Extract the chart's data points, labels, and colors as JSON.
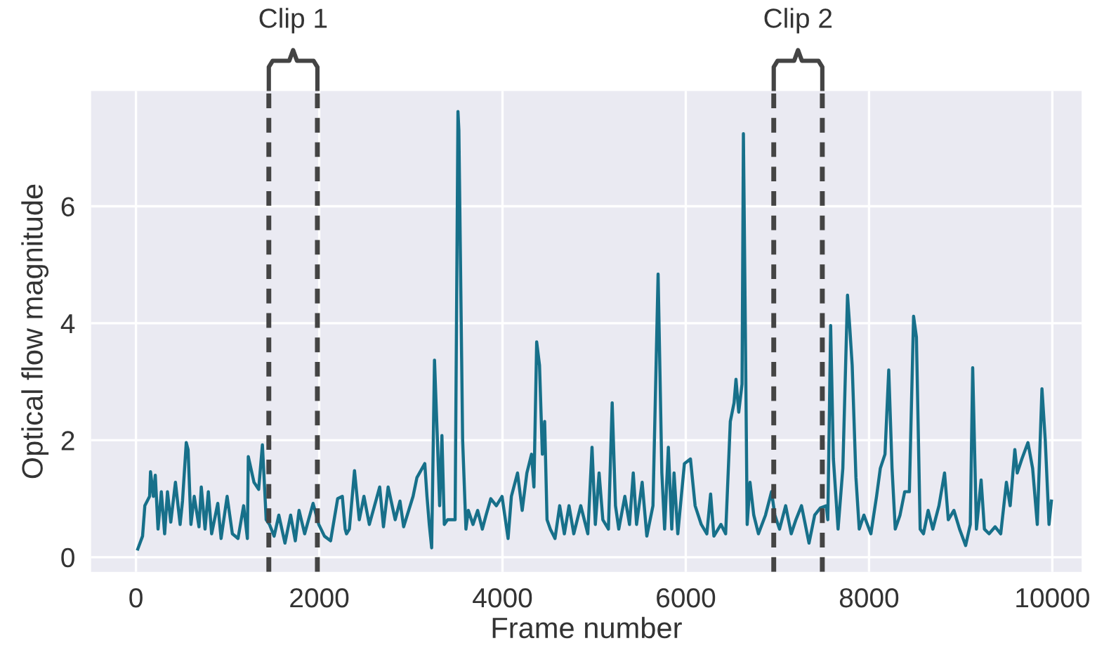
{
  "chart_data": {
    "type": "line",
    "xlabel": "Frame number",
    "ylabel": "Optical flow magnitude",
    "series": [
      {
        "color": "#17708a",
        "x": [
          20,
          72,
          97,
          149,
          159,
          190,
          211,
          241,
          277,
          313,
          344,
          380,
          431,
          482,
          508,
          549,
          569,
          600,
          636,
          688,
          713,
          754,
          790,
          826,
          893,
          929,
          995,
          1052,
          1114,
          1175,
          1216,
          1226,
          1288,
          1339,
          1380,
          1406,
          1421,
          1457,
          1508,
          1559,
          1626,
          1688,
          1739,
          1780,
          1841,
          1933,
          1995,
          2057,
          2124,
          2201,
          2252,
          2283,
          2298,
          2329,
          2385,
          2437,
          2488,
          2547,
          2660,
          2701,
          2701,
          2752,
          2829,
          2881,
          2921,
          3024,
          3066,
          3152,
          3176,
          3201,
          3227,
          3258,
          3288,
          3314,
          3339,
          3365,
          3401,
          3422,
          3483,
          3514,
          3524,
          3565,
          3601,
          3627,
          3678,
          3729,
          3780,
          3821,
          3872,
          3933,
          3995,
          4061,
          4097,
          4164,
          4215,
          4266,
          4317,
          4343,
          4373,
          4404,
          4435,
          4460,
          4486,
          4522,
          4573,
          4624,
          4675,
          4726,
          4778,
          4854,
          4931,
          4977,
          5013,
          5054,
          5095,
          5156,
          5197,
          5233,
          5269,
          5335,
          5386,
          5427,
          5463,
          5524,
          5575,
          5642,
          5698,
          5739,
          5769,
          5810,
          5847,
          5872,
          5913,
          5985,
          6051,
          6102,
          6169,
          6230,
          6271,
          6307,
          6384,
          6435,
          6486,
          6527,
          6548,
          6578,
          6614,
          6629,
          6650,
          6670,
          6701,
          6742,
          6793,
          6870,
          6936,
          6972,
          7023,
          7090,
          7151,
          7202,
          7263,
          7345,
          7407,
          7468,
          7534,
          7550,
          7581,
          7611,
          7662,
          7714,
          7765,
          7790,
          7816,
          7857,
          7893,
          7944,
          8020,
          8082,
          8123,
          8174,
          8215,
          8251,
          8286,
          8338,
          8389,
          8440,
          8486,
          8517,
          8558,
          8594,
          8645,
          8696,
          8763,
          8824,
          8865,
          8926,
          8988,
          9054,
          9105,
          9131,
          9172,
          9223,
          9259,
          9310,
          9376,
          9437,
          9499,
          9540,
          9591,
          9617,
          9668,
          9734,
          9785,
          9836,
          9887,
          9923,
          9964,
          9990
        ],
        "values": [
          0.14,
          0.36,
          0.88,
          1.04,
          1.46,
          1.04,
          1.4,
          0.48,
          1.12,
          0.4,
          1.12,
          0.6,
          1.28,
          0.56,
          0.96,
          1.96,
          1.84,
          0.56,
          1.04,
          0.52,
          1.2,
          0.48,
          1.12,
          0.4,
          0.92,
          0.32,
          1.04,
          0.4,
          0.32,
          0.88,
          0.32,
          1.72,
          1.28,
          1.16,
          1.92,
          1.12,
          0.64,
          0.56,
          0.36,
          0.72,
          0.24,
          0.72,
          0.28,
          0.8,
          0.4,
          0.92,
          0.56,
          0.36,
          0.28,
          1.0,
          1.04,
          0.48,
          0.4,
          0.48,
          1.48,
          0.64,
          1.04,
          0.56,
          1.2,
          0.52,
          0.52,
          1.2,
          0.64,
          0.96,
          0.52,
          1.04,
          1.36,
          1.6,
          1.04,
          0.56,
          0.16,
          3.37,
          2.08,
          0.88,
          2.08,
          0.56,
          0.64,
          0.64,
          0.64,
          7.62,
          7.3,
          2.0,
          0.48,
          0.8,
          0.56,
          0.8,
          0.48,
          0.72,
          1.0,
          0.88,
          1.04,
          0.32,
          1.04,
          1.44,
          0.8,
          1.44,
          1.76,
          1.2,
          3.68,
          3.28,
          1.76,
          2.32,
          0.64,
          0.48,
          0.32,
          0.88,
          0.4,
          0.88,
          0.4,
          0.88,
          0.4,
          1.88,
          0.56,
          1.44,
          0.64,
          0.48,
          2.64,
          0.88,
          0.48,
          1.04,
          0.56,
          1.44,
          0.56,
          1.28,
          0.36,
          0.88,
          4.84,
          1.44,
          0.48,
          1.88,
          0.48,
          1.44,
          0.4,
          1.6,
          1.68,
          0.88,
          0.56,
          0.4,
          1.08,
          0.36,
          0.56,
          0.4,
          2.32,
          2.64,
          3.04,
          2.48,
          2.96,
          7.24,
          3.92,
          0.56,
          1.28,
          0.72,
          0.4,
          0.72,
          1.12,
          0.72,
          0.48,
          0.88,
          0.4,
          0.64,
          0.88,
          0.24,
          0.72,
          0.84,
          0.88,
          0.64,
          3.96,
          1.68,
          0.48,
          1.52,
          4.48,
          3.92,
          3.28,
          1.36,
          0.48,
          0.72,
          0.4,
          1.04,
          1.52,
          1.76,
          3.2,
          1.52,
          0.48,
          0.72,
          1.12,
          1.12,
          4.12,
          3.76,
          0.48,
          0.4,
          0.8,
          0.48,
          0.88,
          1.44,
          0.64,
          0.8,
          0.48,
          0.2,
          0.56,
          3.24,
          0.48,
          1.32,
          0.48,
          0.4,
          0.52,
          0.4,
          1.28,
          0.88,
          1.84,
          1.44,
          1.68,
          1.96,
          1.52,
          0.56,
          2.88,
          2.0,
          0.56,
          0.96
        ]
      }
    ],
    "xlim": [
      -490,
      10320
    ],
    "ylim": [
      -0.25,
      7.97
    ],
    "xticks": [
      0,
      2000,
      4000,
      6000,
      8000,
      10000
    ],
    "yticks": [
      0,
      2,
      4,
      6
    ],
    "grid": true,
    "ref_lines": [
      {
        "axis": "x",
        "value": 1450,
        "color": "#444444",
        "line_style": "dashed"
      },
      {
        "axis": "x",
        "value": 1980,
        "color": "#444444",
        "line_style": "dashed"
      },
      {
        "axis": "x",
        "value": 6960,
        "color": "#444444",
        "line_style": "dashed"
      },
      {
        "axis": "x",
        "value": 7490,
        "color": "#444444",
        "line_style": "dashed"
      }
    ],
    "annotations": [
      "Clip 1",
      "Clip 2"
    ]
  }
}
